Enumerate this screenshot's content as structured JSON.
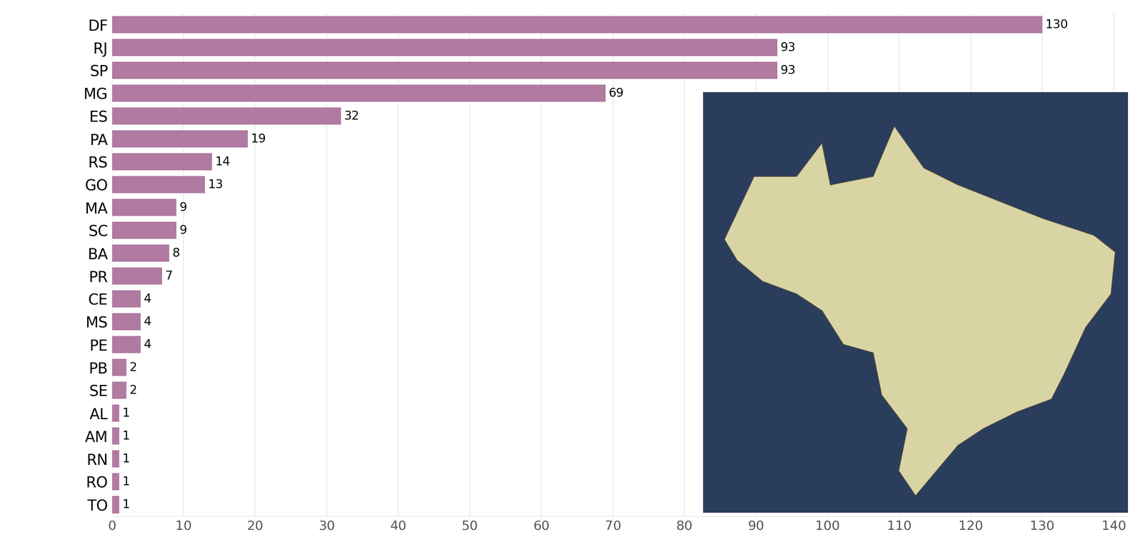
{
  "chart_data": {
    "type": "bar",
    "orientation": "horizontal",
    "categories": [
      "DF",
      "RJ",
      "SP",
      "MG",
      "ES",
      "PA",
      "RS",
      "GO",
      "MA",
      "SC",
      "BA",
      "PR",
      "CE",
      "MS",
      "PE",
      "PB",
      "SE",
      "AL",
      "AM",
      "RN",
      "RO",
      "TO"
    ],
    "values": [
      130,
      93,
      93,
      69,
      32,
      19,
      14,
      13,
      9,
      9,
      8,
      7,
      4,
      4,
      4,
      2,
      2,
      1,
      1,
      1,
      1,
      1
    ],
    "color": "#b07aa1",
    "xlim": [
      0,
      142
    ],
    "xticks": [
      0,
      10,
      20,
      30,
      40,
      50,
      60,
      70,
      80,
      90,
      100,
      110,
      120,
      130,
      140
    ],
    "grid": true,
    "data_labels": true
  }
}
